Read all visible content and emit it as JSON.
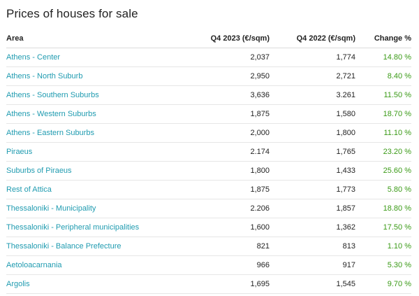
{
  "title": "Prices of houses for sale",
  "columns": {
    "area": "Area",
    "q4_2023": "Q4 2023 (€/sqm)",
    "q4_2022": "Q4 2022 (€/sqm)",
    "change": "Change %"
  },
  "colors": {
    "link": "#1f9bb0",
    "positive": "#3a9a16"
  },
  "rows": [
    {
      "area": "Athens - Center",
      "q4_2023": "2,037",
      "q4_2022": "1,774",
      "change": "14.80 %"
    },
    {
      "area": "Athens - North Suburb",
      "q4_2023": "2,950",
      "q4_2022": "2,721",
      "change": "8.40 %"
    },
    {
      "area": "Athens - Southern Suburbs",
      "q4_2023": "3,636",
      "q4_2022": "3.261",
      "change": "11.50 %"
    },
    {
      "area": "Athens - Western Suburbs",
      "q4_2023": "1,875",
      "q4_2022": "1,580",
      "change": "18.70 %"
    },
    {
      "area": "Athens - Eastern Suburbs",
      "q4_2023": "2,000",
      "q4_2022": "1,800",
      "change": "11.10 %"
    },
    {
      "area": "Piraeus",
      "q4_2023": "2.174",
      "q4_2022": "1,765",
      "change": "23.20 %"
    },
    {
      "area": "Suburbs of Piraeus",
      "q4_2023": "1,800",
      "q4_2022": "1,433",
      "change": "25.60 %"
    },
    {
      "area": "Rest of Attica",
      "q4_2023": "1,875",
      "q4_2022": "1,773",
      "change": "5.80 %"
    },
    {
      "area": "Thessaloniki - Municipality",
      "q4_2023": "2.206",
      "q4_2022": "1,857",
      "change": "18.80 %"
    },
    {
      "area": "Thessaloniki - Peripheral municipalities",
      "q4_2023": "1,600",
      "q4_2022": "1,362",
      "change": "17.50 %"
    },
    {
      "area": "Thessaloniki - Balance Prefecture",
      "q4_2023": "821",
      "q4_2022": "813",
      "change": "1.10 %"
    },
    {
      "area": "Aetoloacarnania",
      "q4_2023": "966",
      "q4_2022": "917",
      "change": "5.30 %"
    },
    {
      "area": "Argolis",
      "q4_2023": "1,695",
      "q4_2022": "1,545",
      "change": "9.70 %"
    }
  ]
}
